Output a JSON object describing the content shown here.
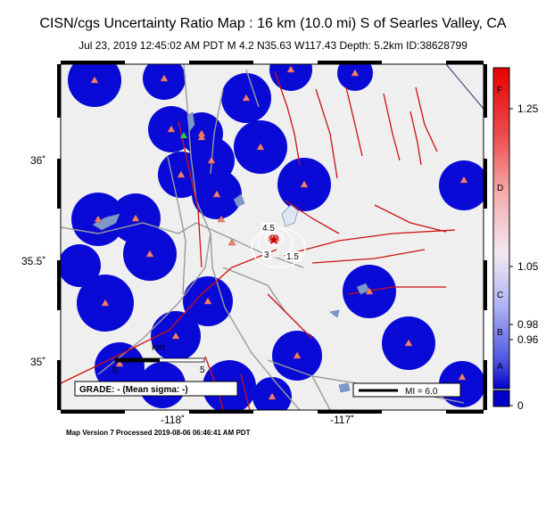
{
  "title": "CISN/cgs Uncertainty Ratio Map : 16 km (10.0 mi) S of Searles Valley, CA",
  "subtitle": "Jul 23, 2019 12:45:02 AM PDT   M 4.2   N35.63 W117.43   Depth: 5.2km   ID:38628799",
  "footer": "Map Version 7 Processed 2019-08-06 06:46:41 AM PDT",
  "axes": {
    "lat_labels": [
      "36˚",
      "35.5˚",
      "35˚"
    ],
    "lon_labels": [
      "-118˚",
      "-117˚"
    ]
  },
  "grade_box": "GRADE: - (Mean sigma: -)",
  "scale_bar": {
    "unit": "km",
    "ticks": [
      "0",
      "5"
    ]
  },
  "mi_legend": "MI = 6.0",
  "colorbar": {
    "letters": [
      "F",
      "D",
      "C",
      "B",
      "A"
    ],
    "values": [
      "1.25",
      "1.05",
      "0.98",
      "0.96",
      "0"
    ]
  },
  "contour_labels": [
    "4.5",
    "3",
    "1.5"
  ],
  "colors": {
    "station_halo": "#0a0ad6",
    "fault": "#cc1111",
    "road": "#9a9a9a",
    "water": "#7f98c9",
    "station": "#f08070",
    "epicenter_star": "#cc0000"
  }
}
